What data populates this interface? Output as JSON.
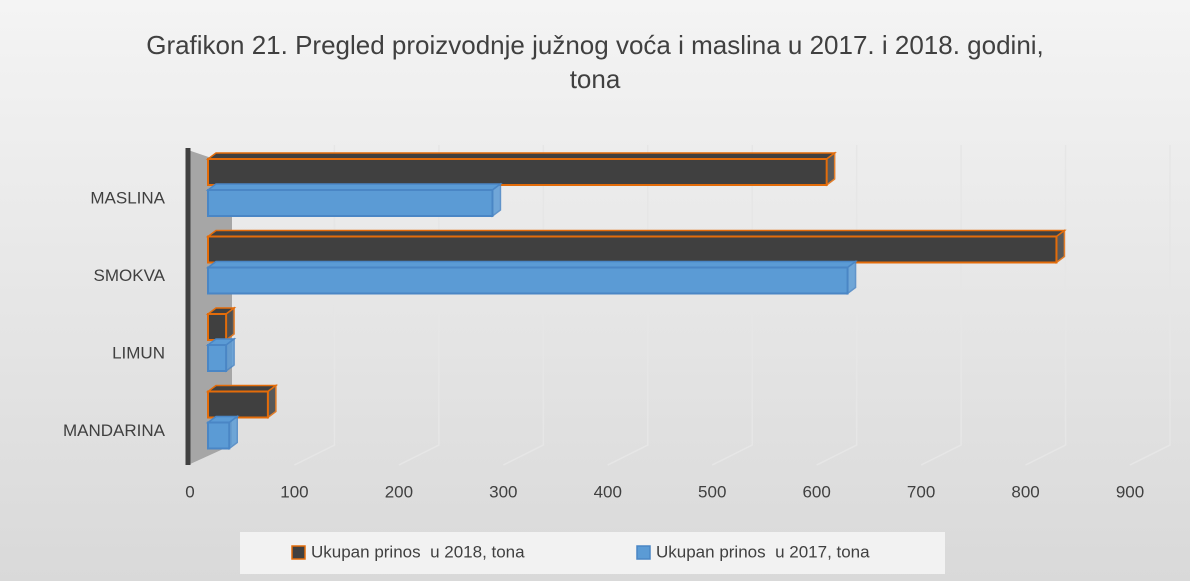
{
  "chart_data": {
    "type": "bar",
    "orientation": "horizontal",
    "title": "Grafikon 21. Pregled proizvodnje južnog voća i maslina u 2017. i 2018. godini, tona",
    "categories": [
      "MASLINA",
      "SMOKVA",
      "LIMUN",
      "MANDARINA"
    ],
    "series": [
      {
        "name": "Ukupan prinos  u 2018, tona",
        "color": "#404040",
        "values": [
          600,
          820,
          25,
          65
        ]
      },
      {
        "name": "Ukupan prinos  u 2017, tona",
        "color": "#5b9bd5",
        "values": [
          280,
          620,
          25,
          28
        ]
      }
    ],
    "xlim": [
      0,
      900
    ],
    "xticks": [
      0,
      100,
      200,
      300,
      400,
      500,
      600,
      700,
      800,
      900
    ],
    "grid": true,
    "legend": "bottom"
  }
}
